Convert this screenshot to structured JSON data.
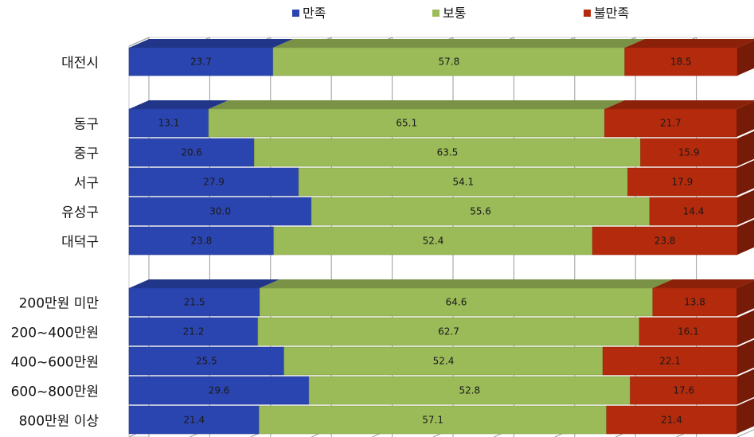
{
  "chart_data": {
    "type": "bar",
    "orientation": "horizontal",
    "stacked": "percent",
    "style": "3d",
    "legend_position": "top",
    "xlim": [
      0,
      100
    ],
    "grid": true,
    "series": [
      {
        "name": "만족",
        "color": "#2b45b0"
      },
      {
        "name": "보통",
        "color": "#9bbb59"
      },
      {
        "name": "불만족",
        "color": "#b42a0c"
      }
    ],
    "groups": [
      {
        "rows": [
          {
            "label": "대전시",
            "values": [
              "23.7",
              "57.8",
              "18.5"
            ]
          }
        ]
      },
      {
        "rows": [
          {
            "label": "동구",
            "values": [
              "13.1",
              "65.1",
              "21.7"
            ]
          },
          {
            "label": "중구",
            "values": [
              "20.6",
              "63.5",
              "15.9"
            ]
          },
          {
            "label": "서구",
            "values": [
              "27.9",
              "54.1",
              "17.9"
            ]
          },
          {
            "label": "유성구",
            "values": [
              "30.0",
              "55.6",
              "14.4"
            ]
          },
          {
            "label": "대덕구",
            "values": [
              "23.8",
              "52.4",
              "23.8"
            ]
          }
        ]
      },
      {
        "rows": [
          {
            "label": "200만원 미만",
            "values": [
              "21.5",
              "64.6",
              "13.8"
            ]
          },
          {
            "label": "200~400만원",
            "values": [
              "21.2",
              "62.7",
              "16.1"
            ]
          },
          {
            "label": "400~600만원",
            "values": [
              "25.5",
              "52.4",
              "22.1"
            ]
          },
          {
            "label": "600~800만원",
            "values": [
              "29.6",
              "52.8",
              "17.6"
            ]
          },
          {
            "label": "800만원 이상",
            "values": [
              "21.4",
              "57.1",
              "21.4"
            ]
          }
        ]
      }
    ]
  }
}
